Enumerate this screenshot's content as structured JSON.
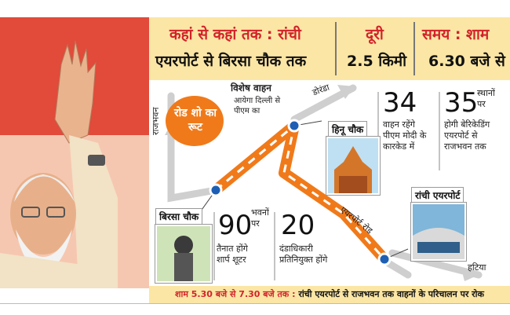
{
  "header": {
    "route_label": "कहां से कहां तक : रांची",
    "route_value": "एयरपोर्ट से बिरसा चौक तक",
    "distance_label": "दूरी",
    "distance_value": "2.5 किमी",
    "time_label": "समय : शाम",
    "time_value": "6.30 बजे से"
  },
  "map": {
    "road_show_badge": "रोड शो का रूट",
    "special_vehicle_title": "विशेष वाहन",
    "special_vehicle_text": "आयेगा दिल्ली से पीएम का",
    "vehicles_count": "34",
    "vehicles_text_1": "वाहन रहेंगे",
    "vehicles_text_2": "पीएम मोदी के",
    "vehicles_text_3": "कारकेड में",
    "barricade_count": "35",
    "barricade_text_1": "स्थानों",
    "barricade_text_2": "पर",
    "barricade_text_3": "होगी बेरिकेडिंग",
    "barricade_text_4": "एयरपोर्ट से",
    "barricade_text_5": "राजभवन तक",
    "shooters_count": "90",
    "shooters_text_1": "भवनों",
    "shooters_text_2": "पर",
    "shooters_text_3": "तैनात होंगे",
    "shooters_text_4": "शार्प शूटर",
    "magistrate_count": "20",
    "magistrate_text_1": "दंडाधिकारी",
    "magistrate_text_2": "प्रतिनियुक्त होंगे",
    "hinoo_chowk": "हिनू चौक",
    "birsa_chowk": "बिरसा चौक",
    "ranchi_airport": "रांची एयरपोर्ट",
    "road_doranda": "डोरंडा",
    "road_rajbhavan": "राजभवन",
    "road_airport": "एयरपोर्ट रोड",
    "road_hatia": "हटिया"
  },
  "footer": {
    "time_span": "शाम 5.30 बजे से 7.30 बजे तक",
    "notice": "रांची एयरपोर्ट से राजभवन तक वाहनों के परिचालन पर रोक"
  },
  "colors": {
    "route_orange": "#f07a1a",
    "header_bg": "#fbe6a5",
    "accent_red": "#d2232a",
    "node_blue": "#1e5fb4"
  }
}
